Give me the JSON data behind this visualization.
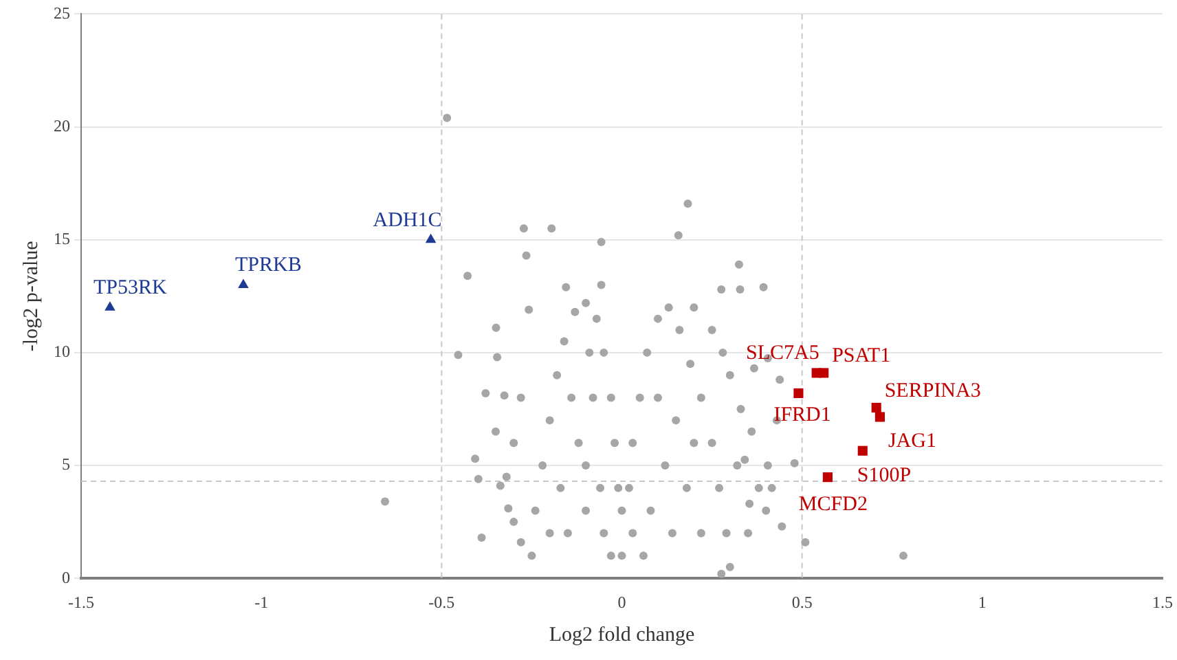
{
  "chart_data": {
    "type": "scatter",
    "xlabel": "Log2 fold change",
    "ylabel": "-log2 p-value",
    "xlim": [
      -1.5,
      1.5
    ],
    "xticks": [
      -1.5,
      -1,
      -0.5,
      0,
      0.5,
      1,
      1.5
    ],
    "ylim": [
      0,
      25
    ],
    "yticks": [
      0,
      5,
      10,
      15,
      20,
      25
    ],
    "grid": "y",
    "ref_lines": [
      {
        "axis": "x",
        "value": -0.5,
        "color": "#c8c8c8",
        "line_style": "dashed"
      },
      {
        "axis": "x",
        "value": 0.5,
        "color": "#c8c8c8",
        "line_style": "dashed"
      },
      {
        "axis": "y",
        "value": 4.3,
        "color": "#c8c8c8",
        "line_style": "dashed"
      }
    ],
    "series": [
      {
        "color": "#a6a6a6",
        "marker": "circle",
        "x": [
          -0.25,
          -0.24,
          -0.22,
          -0.2,
          -0.18,
          -0.16,
          -0.13,
          -0.1,
          -0.07,
          -0.05,
          -0.03,
          -0.02,
          -0.01,
          0,
          -0.15,
          -0.1,
          -0.05,
          -0.12,
          -0.08,
          -0.1,
          -0.14,
          -0.06,
          -0.17,
          -0.09,
          -0.2,
          -0.03,
          0,
          0.03,
          0.02,
          0.03,
          0.05,
          0.07,
          0.1,
          0.13,
          0.16,
          0.19,
          0.22,
          0.25,
          0.27,
          0.29,
          0.3,
          0.08,
          0.12,
          0.15,
          0.1,
          0.18,
          0.2,
          0.06,
          0.14,
          0.22,
          0.3,
          0.33,
          0.36,
          0.28,
          0.32,
          0.38,
          0.35,
          0.25,
          0.2,
          0.4,
          0.43,
          -0.3,
          -0.32,
          -0.28,
          -0.3,
          -0.35,
          -0.485,
          -0.272,
          -0.195,
          -0.265,
          -0.428,
          -0.155,
          -0.258,
          -0.349,
          -0.454,
          -0.346,
          -0.378,
          -0.326,
          -0.407,
          -0.398,
          -0.337,
          -0.657,
          -0.389,
          -0.315,
          -0.28,
          0.183,
          0.157,
          -0.057,
          0.325,
          -0.057,
          0.393,
          0.328,
          0.276,
          0.781,
          0.509,
          0.479,
          0.444,
          0.416,
          0.405,
          0.438,
          0.405,
          0.367,
          0.341,
          0.354,
          0.276
        ],
        "values": [
          1,
          3,
          5,
          7,
          9,
          10.5,
          11.8,
          12.2,
          11.5,
          10,
          8,
          6,
          4,
          3,
          2,
          3,
          2,
          6,
          8,
          5,
          8,
          4,
          4,
          10,
          2,
          1,
          1,
          2,
          4,
          6,
          8,
          10,
          11.5,
          12,
          11,
          9.5,
          8,
          6,
          4,
          2,
          0.5,
          3,
          5,
          7,
          8,
          4,
          6,
          1,
          2,
          2,
          9,
          7.5,
          6.5,
          10,
          5,
          4,
          2,
          11,
          12,
          3,
          7,
          6,
          4.5,
          8,
          2.5,
          6.5,
          20.4,
          15.5,
          15.5,
          14.3,
          13.4,
          12.9,
          11.9,
          11.1,
          9.9,
          9.8,
          8.2,
          8.1,
          5.3,
          4.4,
          4.1,
          3.4,
          1.8,
          3.1,
          1.6,
          16.6,
          15.2,
          14.9,
          13.9,
          13,
          12.9,
          12.8,
          12.8,
          1,
          1.6,
          5.1,
          2.3,
          4,
          5,
          8.8,
          9.75,
          9.3,
          5.25,
          3.3,
          0.2
        ]
      },
      {
        "color": "#1f3a93",
        "marker": "triangle",
        "x": [
          -1.42,
          -1.05,
          -0.53
        ],
        "values": [
          12,
          13,
          15
        ]
      },
      {
        "color": "#c00000",
        "marker": "square",
        "x": [
          0.54,
          0.56,
          0.49,
          0.706,
          0.716,
          0.668,
          0.571
        ],
        "values": [
          9.1,
          9.1,
          8.2,
          7.56,
          7.15,
          5.65,
          4.48
        ]
      }
    ],
    "annotations": [
      {
        "text": "TP53RK",
        "x": -1.42,
        "y": 12
      },
      {
        "text": "TPRKB",
        "x": -1.05,
        "y": 13
      },
      {
        "text": "ADH1C",
        "x": -0.53,
        "y": 15
      },
      {
        "text": "SLC7A5",
        "x": 0.54,
        "y": 9.1
      },
      {
        "text": "PSAT1",
        "x": 0.56,
        "y": 9.1
      },
      {
        "text": "IFRD1",
        "x": 0.49,
        "y": 8.2
      },
      {
        "text": "SERPINA3",
        "x": 0.706,
        "y": 7.56
      },
      {
        "text": "JAG1",
        "x": 0.716,
        "y": 7.15
      },
      {
        "text": "S100P",
        "x": 0.668,
        "y": 5.65
      },
      {
        "text": "MCFD2",
        "x": 0.571,
        "y": 4.48
      }
    ]
  }
}
